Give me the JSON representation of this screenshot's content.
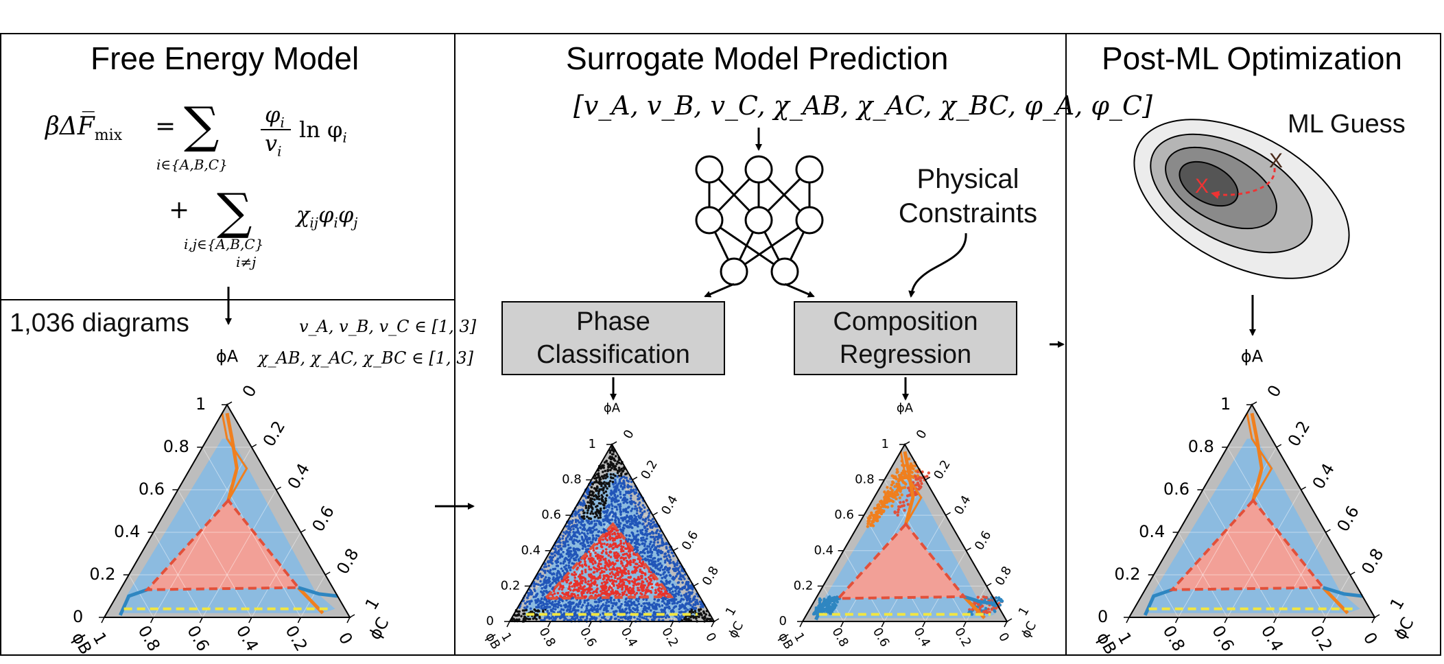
{
  "panels": {
    "free_energy": {
      "title": "Free Energy Model",
      "eq_lhs": "βΔF̅",
      "eq_lhs_sub": "mix",
      "eq_eq": "=",
      "sum1_under": "i∈{A,B,C}",
      "frac_num": "φ",
      "frac_num_sub": "i",
      "frac_den": "v",
      "frac_den_sub": "i",
      "ln_term": "ln φ",
      "ln_sub": "i",
      "plus": "+",
      "sum2_under1": "i,j∈{A,B,C}",
      "sum2_under2": "i≠j",
      "chi_term": "χ",
      "chi_sub": "ij",
      "chi_rest": "φ",
      "chi_rest_sub1": "i",
      "chi_rest2": "φ",
      "chi_rest_sub2": "j"
    },
    "diagrams": {
      "count_label": "1,036 diagrams",
      "range1": "v_A, v_B, v_C ∈ [1, 3]",
      "range2": "χ_AB, χ_AC, χ_BC ∈ [1, 3]"
    },
    "surrogate": {
      "title": "Surrogate Model Prediction",
      "input_vector": "[v_A, v_B, v_C, χ_AB, χ_AC, χ_BC, φ_A, φ_C]",
      "physical_constraints_line1": "Physical",
      "physical_constraints_line2": "Constraints",
      "phase_box_line1": "Phase",
      "phase_box_line2": "Classification",
      "comp_box_line1": "Composition",
      "comp_box_line2": "Regression"
    },
    "post_ml": {
      "title": "Post-ML Optimization",
      "ml_guess": "ML Guess",
      "marker": "X"
    }
  },
  "ternary": {
    "apex_label": "ϕA",
    "left_label": "ϕB",
    "right_label": "ϕC",
    "left_ticks": [
      "1",
      "0.8",
      "0.6",
      "0.4",
      "0.2",
      "0"
    ],
    "right_ticks": [
      "0",
      "0.2",
      "0.4",
      "0.6",
      "0.8",
      "1"
    ],
    "bottom_ticks": [
      "1",
      "0.8",
      "0.6",
      "0.4",
      "0.2",
      "0"
    ]
  },
  "colors": {
    "two_phase_blue": "#8cbbe0",
    "three_phase_red": "#f2a097",
    "one_phase_gray": "#bdbdbd",
    "orange_line": "#f07f1e",
    "blue_line": "#2e86c1",
    "red_dash": "#e2503a",
    "yellow_dash": "#f2e640",
    "box_gray": "#d0d0d0"
  }
}
